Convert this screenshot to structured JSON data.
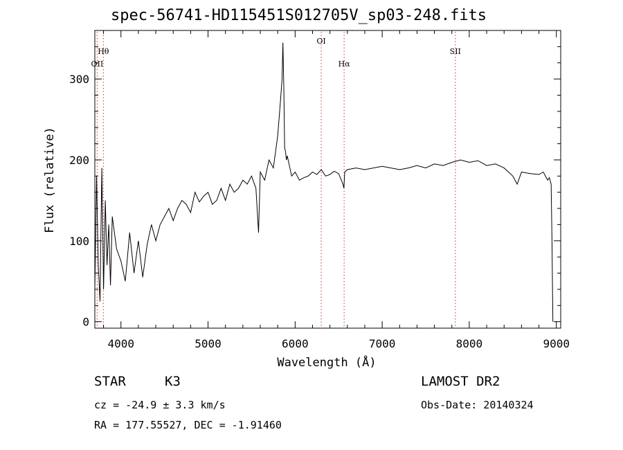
{
  "title": "spec-56741-HD115451S012705V_sp03-248.fits",
  "footer": {
    "obj_class": "STAR",
    "obj_subclass": "K3",
    "survey": "LAMOST DR2",
    "obs_date": "Obs-Date: 20140324",
    "cz": "cz = -24.9 ± 3.3 km/s",
    "radec": "RA = 177.55527, DEC =  -1.91460"
  },
  "chart_data": {
    "type": "line",
    "title": "spec-56741-HD115451S012705V_sp03-248.fits",
    "xlabel": "Wavelength (Å)",
    "ylabel": "Flux (relative)",
    "xlim": [
      3700,
      9050
    ],
    "ylim": [
      -8,
      360
    ],
    "xticks": [
      4000,
      5000,
      6000,
      7000,
      8000,
      9000
    ],
    "yticks": [
      0,
      100,
      200,
      300
    ],
    "grid": false,
    "lines": [
      {
        "label": "Hθ",
        "x": 3798
      },
      {
        "label": "OII",
        "x": 3727
      },
      {
        "label": "OI",
        "x": 6300
      },
      {
        "label": "Hα",
        "x": 6563
      },
      {
        "label": "SII",
        "x": 7840
      }
    ],
    "line_color": "#d44c4c",
    "series": [
      {
        "x": [
          3700,
          3720,
          3740,
          3760,
          3780,
          3800,
          3820,
          3840,
          3860,
          3880,
          3900,
          3950,
          4000,
          4050,
          4100,
          4150,
          4200,
          4250,
          4300,
          4350,
          4400,
          4450,
          4500,
          4550,
          4600,
          4650,
          4700,
          4750,
          4800,
          4850,
          4900,
          4950,
          5000,
          5050,
          5100,
          5150,
          5200,
          5250,
          5300,
          5350,
          5400,
          5450,
          5500,
          5550,
          5580,
          5600,
          5650,
          5700,
          5750,
          5800,
          5830,
          5850,
          5860,
          5870,
          5880,
          5890,
          5900,
          5910,
          5930,
          5960,
          6000,
          6050,
          6100,
          6150,
          6200,
          6250,
          6300,
          6350,
          6400,
          6450,
          6500,
          6550,
          6560,
          6570,
          6600,
          6700,
          6800,
          6900,
          7000,
          7100,
          7200,
          7300,
          7400,
          7500,
          7600,
          7700,
          7800,
          7900,
          8000,
          8100,
          8200,
          8300,
          8400,
          8500,
          8550,
          8600,
          8700,
          8800,
          8850,
          8900,
          8920,
          8940,
          8950,
          8960
        ],
        "y": [
          40,
          180,
          70,
          25,
          190,
          40,
          150,
          70,
          120,
          45,
          130,
          90,
          75,
          50,
          110,
          60,
          100,
          55,
          95,
          120,
          100,
          120,
          130,
          140,
          125,
          140,
          150,
          145,
          135,
          160,
          148,
          155,
          160,
          145,
          150,
          165,
          150,
          170,
          160,
          165,
          175,
          170,
          180,
          165,
          110,
          185,
          175,
          200,
          190,
          230,
          270,
          300,
          345,
          290,
          215,
          210,
          200,
          205,
          195,
          180,
          185,
          175,
          178,
          180,
          185,
          182,
          188,
          180,
          182,
          186,
          183,
          170,
          165,
          185,
          188,
          190,
          188,
          190,
          192,
          190,
          188,
          190,
          193,
          190,
          195,
          193,
          197,
          200,
          197,
          199,
          193,
          195,
          190,
          180,
          170,
          185,
          183,
          182,
          185,
          175,
          178,
          170,
          100,
          0
        ]
      }
    ]
  }
}
